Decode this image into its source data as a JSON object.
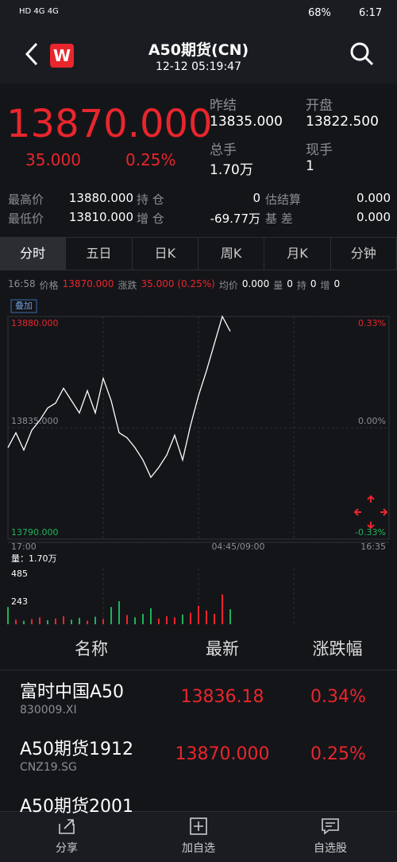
{
  "status_bar": {
    "left": "HD 4G 4G",
    "battery": "68%",
    "time": "6:17"
  },
  "header": {
    "logo": "W",
    "title": "A50期货(CN)",
    "subtitle": "12-12 05:19:47"
  },
  "quote": {
    "price": "13870.000",
    "change": "35.000",
    "change_pct": "0.25%",
    "stats": [
      {
        "label": "昨结",
        "value": "13835.000"
      },
      {
        "label": "开盘",
        "value": "13822.500"
      },
      {
        "label": "总手",
        "value": "1.70万"
      },
      {
        "label": "现手",
        "value": "1"
      }
    ]
  },
  "details": [
    [
      "最高价",
      "13880.000",
      "持 仓",
      "0",
      "估结算",
      "0.000"
    ],
    [
      "最低价",
      "13810.000",
      "增 仓",
      "-69.77万",
      "基 差",
      "0.000"
    ]
  ],
  "tabs": [
    "分时",
    "五日",
    "日K",
    "周K",
    "月K",
    "分钟"
  ],
  "info_line": [
    {
      "text": "16:58"
    },
    {
      "text": "价格"
    },
    {
      "text": "13870.000",
      "color": "#e8262c"
    },
    {
      "text": "涨跌"
    },
    {
      "text": "35.000 (0.25%)",
      "color": "#e8262c"
    },
    {
      "text": "均价"
    },
    {
      "text": "0.000",
      "color": "#ffffff"
    },
    {
      "text": "量"
    },
    {
      "text": "0",
      "color": "#ffffff"
    },
    {
      "text": "持"
    },
    {
      "text": "0",
      "color": "#ffffff"
    },
    {
      "text": "增"
    },
    {
      "text": "0",
      "color": "#ffffff"
    }
  ],
  "chart_data": [
    {
      "type": "line",
      "badge": "叠加",
      "color": "#ffffff",
      "x": [
        0,
        1,
        2,
        3,
        4,
        5,
        6,
        7,
        8,
        9,
        10,
        11,
        12,
        13,
        14,
        15,
        16,
        17,
        18,
        19,
        20,
        21,
        22,
        23,
        24,
        25,
        26,
        27,
        28
      ],
      "values": [
        13827,
        13833,
        13826,
        13834,
        13838,
        13843,
        13845,
        13851,
        13846,
        13841,
        13850,
        13841,
        13855,
        13846,
        13833,
        13831,
        13827,
        13822,
        13815,
        13819,
        13824,
        13832,
        13822,
        13836,
        13848,
        13858,
        13869,
        13880,
        13874
      ],
      "xlim": [
        0,
        48
      ],
      "xticks": [
        {
          "value": 0,
          "label": "17:00"
        },
        {
          "value": 29,
          "label": "04:45/09:00"
        },
        {
          "value": 48,
          "label": "16:35"
        }
      ],
      "ylim": [
        13790,
        13880
      ],
      "yticks": [
        {
          "value": 13790,
          "label": "13790.000"
        },
        {
          "value": 13835,
          "label": "13835.000"
        },
        {
          "value": 13880,
          "label": "13880.000"
        }
      ],
      "y2lim": [
        -0.33,
        0.33
      ],
      "y2ticks": [
        {
          "value": -0.33,
          "label": "-0.33%"
        },
        {
          "value": 0,
          "label": "0.00%"
        },
        {
          "value": 0.33,
          "label": "0.33%"
        }
      ]
    },
    {
      "type": "bar",
      "title": "量：1.70万",
      "x": [
        0,
        1,
        2,
        3,
        4,
        5,
        6,
        7,
        8,
        9,
        10,
        11,
        12,
        13,
        14,
        15,
        16,
        17,
        18,
        19,
        20,
        21,
        22,
        23,
        24,
        25,
        26,
        27,
        28
      ],
      "values": [
        150,
        40,
        30,
        45,
        60,
        35,
        50,
        70,
        40,
        55,
        30,
        65,
        45,
        150,
        200,
        80,
        60,
        90,
        140,
        50,
        70,
        60,
        85,
        100,
        160,
        120,
        90,
        260,
        130
      ],
      "colors": [
        "#1fb35a",
        "#e8262c",
        "#1fb35a",
        "#e8262c",
        "#e8262c",
        "#1fb35a",
        "#e8262c",
        "#e8262c",
        "#1fb35a",
        "#1fb35a",
        "#e8262c",
        "#1fb35a",
        "#e8262c",
        "#1fb35a",
        "#1fb35a",
        "#e8262c",
        "#1fb35a",
        "#1fb35a",
        "#1fb35a",
        "#e8262c",
        "#e8262c",
        "#e8262c",
        "#1fb35a",
        "#e8262c",
        "#e8262c",
        "#e8262c",
        "#e8262c",
        "#e8262c",
        "#1fb35a"
      ],
      "xlim": [
        0,
        48
      ],
      "ylim": [
        0,
        485
      ],
      "yticks": [
        243,
        485
      ]
    }
  ],
  "table": {
    "headers": [
      "名称",
      "最新",
      "涨跌幅"
    ],
    "rows": [
      {
        "name": "富时中国A50",
        "code": "830009.XI",
        "latest": "13836.18",
        "change_pct": "0.34%"
      },
      {
        "name": "A50期货1912",
        "code": "CNZ19.SG",
        "latest": "13870.000",
        "change_pct": "0.25%"
      },
      {
        "name": "A50期货2001"
      }
    ]
  },
  "bottom_nav": [
    "分享",
    "加自选",
    "自选股"
  ]
}
